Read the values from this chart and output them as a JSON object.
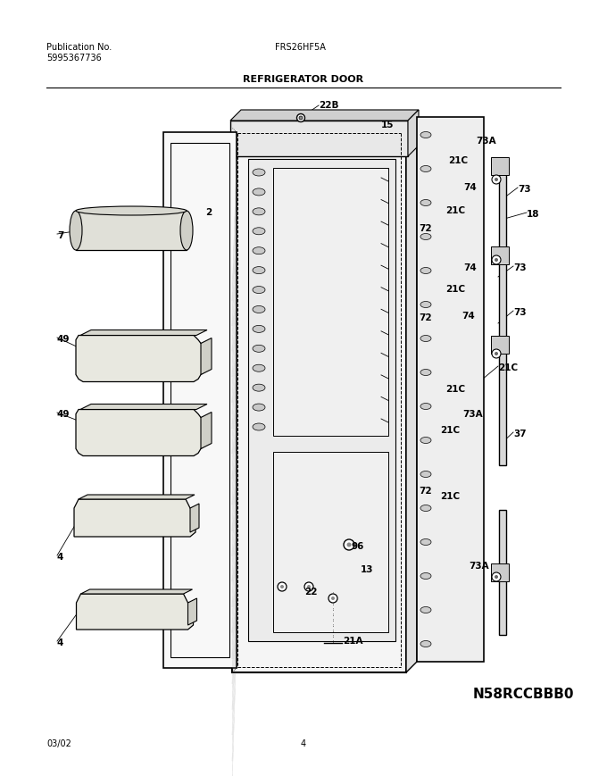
{
  "title": "REFRIGERATOR DOOR",
  "pub_no_label": "Publication No.",
  "pub_no": "5995367736",
  "model": "FRS26HF5A",
  "date": "03/02",
  "page": "4",
  "part_code": "N58RCCBBB0",
  "bg_color": "#ffffff",
  "line_color": "#000000",
  "figsize": [
    6.8,
    8.69
  ],
  "dpi": 100,
  "labels": [
    [
      357,
      118,
      "22B"
    ],
    [
      427,
      140,
      "15"
    ],
    [
      533,
      158,
      "73A"
    ],
    [
      502,
      180,
      "21C"
    ],
    [
      519,
      210,
      "74"
    ],
    [
      580,
      212,
      "73"
    ],
    [
      590,
      240,
      "18"
    ],
    [
      499,
      236,
      "21C"
    ],
    [
      469,
      256,
      "72"
    ],
    [
      519,
      300,
      "74"
    ],
    [
      575,
      300,
      "73"
    ],
    [
      499,
      324,
      "21C"
    ],
    [
      469,
      356,
      "72"
    ],
    [
      517,
      354,
      "74"
    ],
    [
      575,
      350,
      "73"
    ],
    [
      558,
      412,
      "21C"
    ],
    [
      499,
      436,
      "21C"
    ],
    [
      518,
      464,
      "73A"
    ],
    [
      493,
      482,
      "21C"
    ],
    [
      575,
      486,
      "37"
    ],
    [
      469,
      550,
      "72"
    ],
    [
      493,
      556,
      "21C"
    ],
    [
      393,
      612,
      "96"
    ],
    [
      404,
      638,
      "13"
    ],
    [
      341,
      663,
      "22"
    ],
    [
      384,
      718,
      "21A"
    ],
    [
      525,
      634,
      "73A"
    ],
    [
      230,
      238,
      "2"
    ],
    [
      64,
      264,
      "7"
    ],
    [
      64,
      380,
      "49"
    ],
    [
      64,
      464,
      "49"
    ],
    [
      64,
      624,
      "4"
    ],
    [
      64,
      720,
      "4"
    ]
  ]
}
